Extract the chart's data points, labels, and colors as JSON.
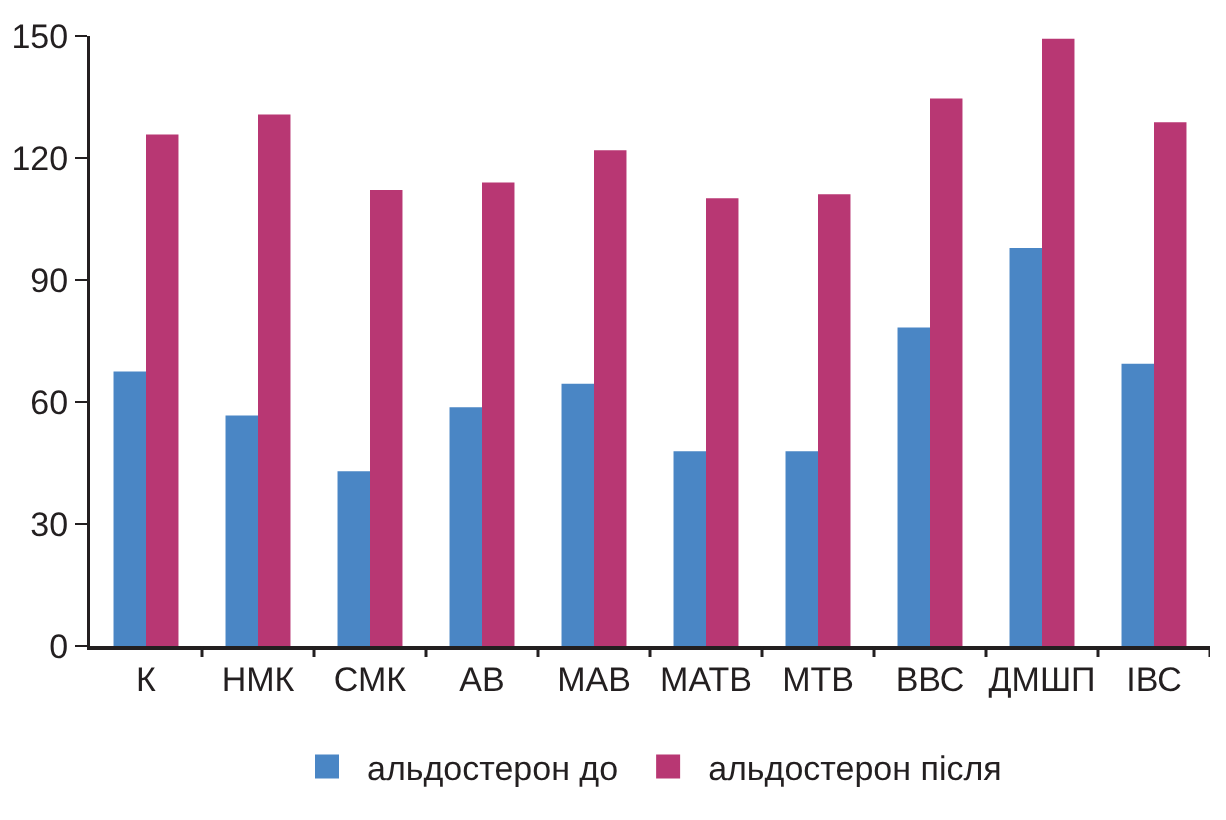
{
  "chart_data": {
    "type": "bar",
    "categories": [
      "К",
      "НМК",
      "СМК",
      "АВ",
      "МАВ",
      "МАТВ",
      "МТВ",
      "ВВС",
      "ДМШП",
      "ІВС"
    ],
    "series": [
      {
        "name": "альдостерон до",
        "color": "#4a86c5",
        "values": [
          67.5,
          56.7,
          43,
          58.7,
          64.5,
          47.9,
          47.9,
          78.3,
          97.9,
          69.4
        ]
      },
      {
        "name": "альдостерон після",
        "color": "#b83773",
        "values": [
          125.8,
          130.7,
          112.1,
          114,
          121.9,
          110.1,
          111.1,
          134.6,
          149.3,
          128.8
        ]
      }
    ],
    "ylim": [
      0,
      150
    ],
    "yticks": [
      0,
      30,
      60,
      90,
      120,
      150
    ],
    "grid": false,
    "legend": "bottom"
  }
}
